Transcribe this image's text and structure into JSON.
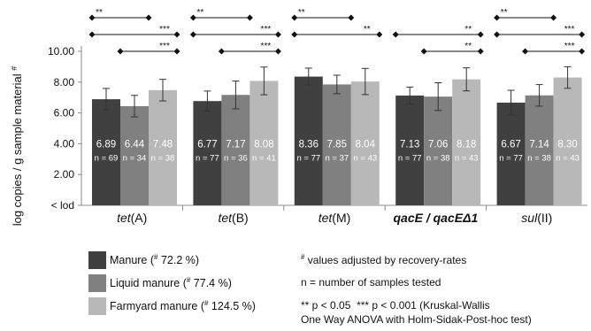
{
  "chart_data": {
    "type": "bar",
    "ylabel": "log copies / g sample material",
    "ylabel_mark": "#",
    "yticks": [
      "< lod",
      "2.00",
      "4.00",
      "6.00",
      "8.00",
      "10.00"
    ],
    "ylim": [
      0,
      10
    ],
    "categories": [
      {
        "pre": "tet",
        "post": "(A)",
        "italic_all": false
      },
      {
        "pre": "tet",
        "post": "(B)",
        "italic_all": false
      },
      {
        "pre": "tet",
        "post": "(M)",
        "italic_all": false
      },
      {
        "pre": "qacE / qacEΔ1",
        "post": "",
        "italic_all": true
      },
      {
        "pre": "sul",
        "post": "(II)",
        "italic_all": false
      }
    ],
    "series": [
      {
        "name": "Manure",
        "legend_pct": "72.2 %",
        "color": "#404040",
        "values": [
          6.89,
          6.77,
          8.36,
          7.13,
          6.67
        ],
        "err": [
          0.7,
          0.65,
          0.55,
          0.55,
          0.8
        ],
        "labels": [
          "6.89",
          "6.77",
          "8.36",
          "7.13",
          "6.67"
        ],
        "n": [
          "n = 69",
          "n = 77",
          "n = 77",
          "n = 77",
          "n = 77"
        ]
      },
      {
        "name": "Liquid manure",
        "legend_pct": "77.4 %",
        "color": "#808080",
        "values": [
          6.44,
          7.17,
          7.85,
          7.06,
          7.14
        ],
        "err": [
          0.7,
          0.9,
          0.6,
          0.9,
          0.7
        ],
        "labels": [
          "6.44",
          "7.17",
          "7.85",
          "7.06",
          "7.14"
        ],
        "n": [
          "n = 34",
          "n = 36",
          "n = 37",
          "n = 38",
          "n = 38"
        ]
      },
      {
        "name": "Farmyard manure",
        "legend_pct": "124.5 %",
        "color": "#b8b8b8",
        "values": [
          7.48,
          8.08,
          8.04,
          8.18,
          8.3
        ],
        "err": [
          0.7,
          0.9,
          0.85,
          0.75,
          0.7
        ],
        "labels": [
          "7.48",
          "8.08",
          "8.04",
          "8.18",
          "8.30"
        ],
        "n": [
          "n = 38",
          "n = 41",
          "n = 43",
          "n = 43",
          "n = 43"
        ]
      }
    ],
    "significance": [
      {
        "group": 0,
        "from": 0,
        "to": 1,
        "label": "**"
      },
      {
        "group": 0,
        "from": 0,
        "to": 2,
        "label": "***"
      },
      {
        "group": 0,
        "from": 1,
        "to": 2,
        "label": "***"
      },
      {
        "group": 1,
        "from": 0,
        "to": 1,
        "label": "**"
      },
      {
        "group": 1,
        "from": 0,
        "to": 2,
        "label": "***"
      },
      {
        "group": 1,
        "from": 1,
        "to": 2,
        "label": "***"
      },
      {
        "group": 2,
        "from": 0,
        "to": 1,
        "label": "**"
      },
      {
        "group": 2,
        "from": 0,
        "to": 2,
        "label": "**"
      },
      {
        "group": 3,
        "from": 0,
        "to": 2,
        "label": "**"
      },
      {
        "group": 3,
        "from": 1,
        "to": 2,
        "label": "**"
      },
      {
        "group": 4,
        "from": 0,
        "to": 1,
        "label": "**"
      },
      {
        "group": 4,
        "from": 0,
        "to": 2,
        "label": "***"
      },
      {
        "group": 4,
        "from": 1,
        "to": 2,
        "label": "***"
      }
    ],
    "legend_mark": "#",
    "grid": false,
    "legend_placement": "bottom"
  },
  "notes": {
    "mark": "#",
    "adjusted": "values adjusted by recovery-rates",
    "n_def": "n = number of samples tested",
    "sig_p1": "** p < 0.05",
    "sig_p2": "*** p < 0.001 (Kruskal-Wallis",
    "sig_test": "One Way ANOVA with Holm-Sidak-Post-hoc test)"
  }
}
